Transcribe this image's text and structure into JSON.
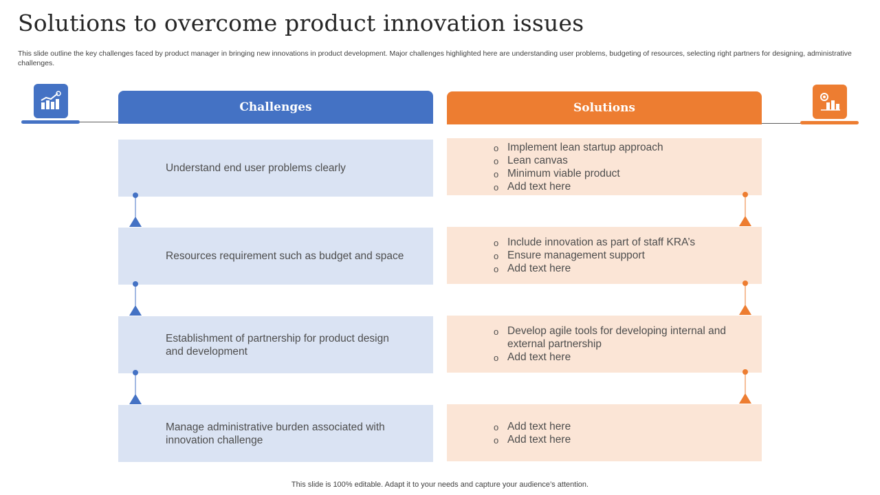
{
  "page": {
    "title": "Solutions to overcome product innovation issues",
    "subtitle": "This slide outline the key challenges faced by product manager in bringing new innovations in product development. Major challenges highlighted here are understanding user problems, budgeting of resources, selecting right partners for designing, administrative challenges.",
    "footer": "This slide is 100% editable. Adapt it to your needs and capture your audience’s attention."
  },
  "challenges": {
    "header": "Challenges",
    "icon": "growth-chart-icon",
    "color": "#4472c4",
    "items": [
      "Understand end user problems clearly",
      "Resources requirement such as budget and space",
      "Establishment of partnership for product design and development",
      "Manage administrative burden associated with innovation challenge"
    ]
  },
  "solutions": {
    "header": "Solutions",
    "icon": "bar-chart-gear-icon",
    "color": "#ed7d31",
    "items": [
      {
        "bullets": [
          "Implement lean startup approach",
          "Lean canvas",
          "Minimum viable product",
          "Add text here"
        ]
      },
      {
        "bullets": [
          "Include innovation as part of staff KRA’s",
          "Ensure management support",
          "Add text here"
        ]
      },
      {
        "bullets": [
          "Develop agile tools for developing internal and external partnership",
          "Add text here"
        ]
      },
      {
        "bullets": [
          "Add text here",
          "Add text here"
        ]
      }
    ]
  }
}
